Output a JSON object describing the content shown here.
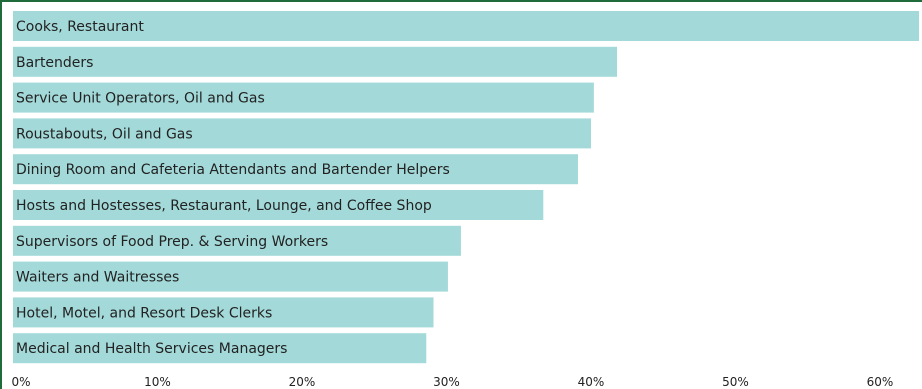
{
  "chart_data": {
    "type": "bar",
    "orientation": "horizontal",
    "categories": [
      "Cooks, Restaurant",
      "Bartenders",
      "Service Unit Operators, Oil and Gas",
      "Roustabouts, Oil and Gas",
      "Dining Room and Cafeteria Attendants and Bartender Helpers",
      "Hosts and Hostesses, Restaurant, Lounge, and Coffee Shop",
      "Supervisors of Food Prep. & Serving Workers",
      "Waiters and Waitresses",
      "Hotel, Motel, and Resort Desk Clerks",
      "Medical and Health Services Managers"
    ],
    "values": [
      62.7,
      41.8,
      40.2,
      40.0,
      39.1,
      36.7,
      31.0,
      30.1,
      29.1,
      28.6
    ],
    "xlim": [
      0,
      62.7
    ],
    "xticks": [
      "0%",
      "10%",
      "20%",
      "30%",
      "40%",
      "50%",
      "60%"
    ],
    "xtick_values": [
      0,
      10,
      20,
      30,
      40,
      50,
      60
    ],
    "bar_color": "#a3dad9",
    "border_color": "#1f6b3a",
    "grid": false,
    "title": "",
    "xlabel": "",
    "ylabel": ""
  }
}
